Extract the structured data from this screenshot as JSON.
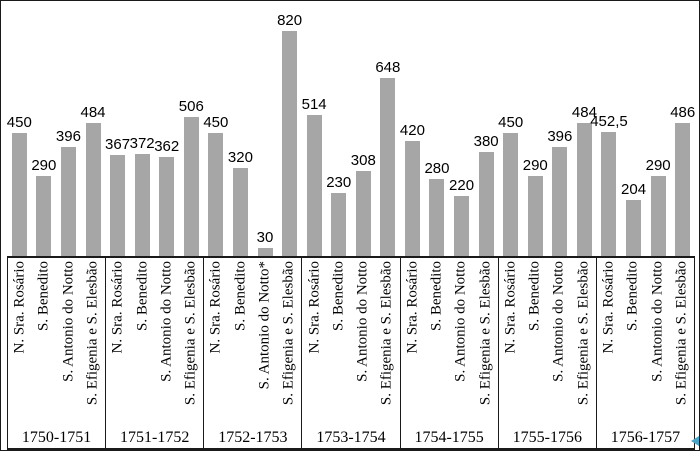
{
  "figure": {
    "background": "#ffffff",
    "frame_color": "#1a1a1a"
  },
  "chart_data": {
    "type": "bar",
    "title": "",
    "xlabel": "",
    "ylabel": "",
    "gridlines": false,
    "legend": false,
    "bar_color": "#a6a6a6",
    "value_labels_shown": true,
    "category_axis_levels": [
      "brotherhood",
      "period"
    ],
    "groups": [
      {
        "period": "1750-1751",
        "bars": [
          {
            "category": "N. Sra. Rosário",
            "value": 450,
            "label": "450"
          },
          {
            "category": "S. Benedito",
            "value": 290,
            "label": "290"
          },
          {
            "category": "S. Antonio do Notto",
            "value": 396,
            "label": "396"
          },
          {
            "category": "S. Efigenia e S. Elesbão",
            "value": 484,
            "label": "484"
          }
        ]
      },
      {
        "period": "1751-1752",
        "bars": [
          {
            "category": "N. Sra. Rosário",
            "value": 367,
            "label": "367"
          },
          {
            "category": "S. Benedito",
            "value": 372,
            "label": "372"
          },
          {
            "category": "S. Antonio do Notto",
            "value": 362,
            "label": "362"
          },
          {
            "category": "S. Efigenia e S. Elesbão",
            "value": 506,
            "label": "506"
          }
        ]
      },
      {
        "period": "1752-1753",
        "bars": [
          {
            "category": "N. Sra. Rosário",
            "value": 450,
            "label": "450"
          },
          {
            "category": "S. Benedito",
            "value": 320,
            "label": "320"
          },
          {
            "category": "S. Antonio do Notto*",
            "value": 30,
            "label": "30"
          },
          {
            "category": "S. Efigenia e S. Elesbão",
            "value": 820,
            "label": "820"
          }
        ]
      },
      {
        "period": "1753-1754",
        "bars": [
          {
            "category": "N. Sra. Rosário",
            "value": 514,
            "label": "514"
          },
          {
            "category": "S. Benedito",
            "value": 230,
            "label": "230"
          },
          {
            "category": "S. Antonio do Notto",
            "value": 308,
            "label": "308"
          },
          {
            "category": "S. Efigenia e S. Elesbão",
            "value": 648,
            "label": "648"
          }
        ]
      },
      {
        "period": "1754-1755",
        "bars": [
          {
            "category": "N. Sra. Rosário",
            "value": 420,
            "label": "420"
          },
          {
            "category": "S. Benedito",
            "value": 280,
            "label": "280"
          },
          {
            "category": "S. Antonio do Notto",
            "value": 220,
            "label": "220"
          },
          {
            "category": "S. Efigenia e S. Elesbão",
            "value": 380,
            "label": "380"
          }
        ]
      },
      {
        "period": "1755-1756",
        "bars": [
          {
            "category": "N. Sra. Rosário",
            "value": 450,
            "label": "450"
          },
          {
            "category": "S. Benedito",
            "value": 290,
            "label": "290"
          },
          {
            "category": "S. Antonio do Notto",
            "value": 396,
            "label": "396"
          },
          {
            "category": "S. Efigenia e S. Elesbão",
            "value": 484,
            "label": "484"
          }
        ]
      },
      {
        "period": "1756-1757",
        "bars": [
          {
            "category": "N. Sra. Rosário",
            "value": 452.5,
            "label": "452,5"
          },
          {
            "category": "S. Benedito",
            "value": 204,
            "label": "204"
          },
          {
            "category": "S. Antonio do Notto",
            "value": 290,
            "label": "290"
          },
          {
            "category": "S. Efigenia e S. Elesbão",
            "value": 486,
            "label": "486"
          }
        ]
      }
    ],
    "artifact": {
      "name": "blue-left-arrow",
      "color": "#4aa6c8"
    }
  }
}
